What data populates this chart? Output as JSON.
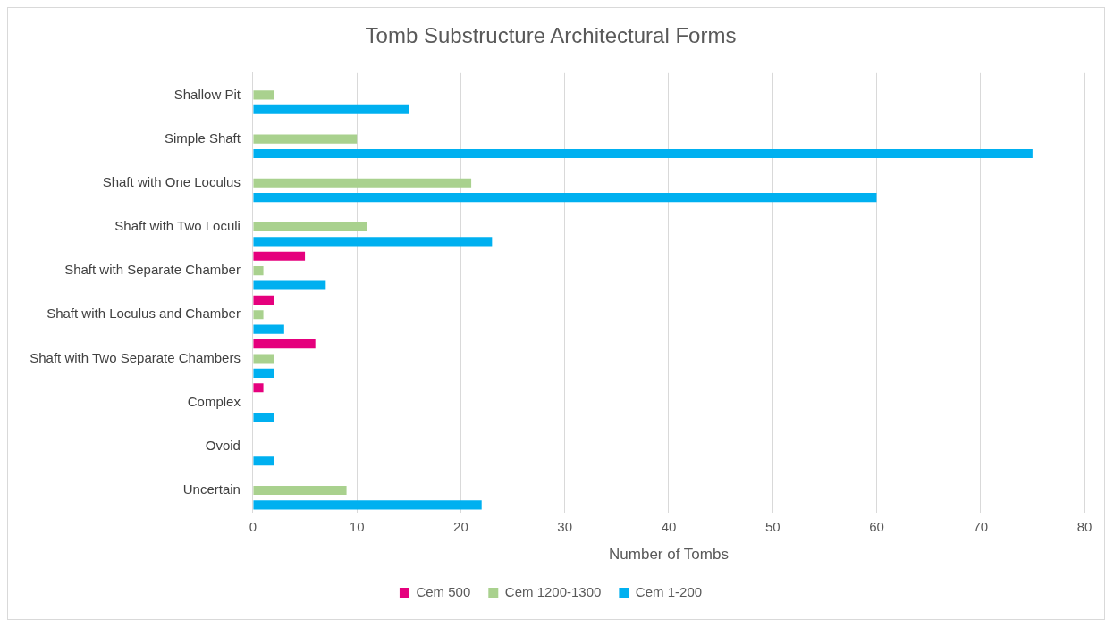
{
  "chart_data": {
    "type": "bar",
    "orientation": "horizontal",
    "title": "Tomb Substructure Architectural Forms",
    "xlabel": "Number of Tombs",
    "categories": [
      "Shallow Pit",
      "Simple Shaft",
      "Shaft with One Loculus",
      "Shaft with Two Loculi",
      "Shaft with Separate Chamber",
      "Shaft with Loculus and Chamber",
      "Shaft with Two Separate Chambers",
      "Complex",
      "Ovoid",
      "Uncertain"
    ],
    "series": [
      {
        "name": "Cem 500",
        "color": "#e5007d",
        "values": [
          0,
          0,
          0,
          0,
          5,
          2,
          6,
          1,
          0,
          0
        ]
      },
      {
        "name": "Cem 1200-1300",
        "color": "#a9d18e",
        "values": [
          2,
          10,
          21,
          11,
          1,
          1,
          2,
          0,
          0,
          9
        ]
      },
      {
        "name": "Cem 1-200",
        "color": "#00b0f0",
        "values": [
          15,
          75,
          60,
          23,
          7,
          3,
          2,
          2,
          2,
          22
        ]
      }
    ],
    "xlim": [
      0,
      80
    ],
    "xticks": [
      0,
      10,
      20,
      30,
      40,
      50,
      60,
      70,
      80
    ],
    "grid": "x",
    "legend": "bottom"
  }
}
